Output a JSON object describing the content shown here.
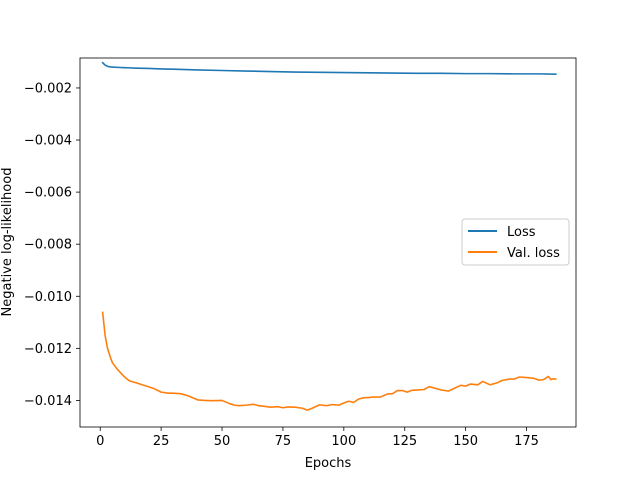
{
  "chart_data": {
    "type": "line",
    "title": "",
    "xlabel": "Epochs",
    "ylabel": "Negative log-likelihood",
    "xlim": [
      -8.3,
      195.3
    ],
    "ylim": [
      -0.01502,
      -0.00085
    ],
    "x_ticks": [
      0,
      25,
      50,
      75,
      100,
      125,
      150,
      175
    ],
    "x_tick_labels": [
      "0",
      "25",
      "50",
      "75",
      "100",
      "125",
      "150",
      "175"
    ],
    "y_ticks": [
      -0.002,
      -0.004,
      -0.006,
      -0.008,
      -0.01,
      -0.012,
      -0.014
    ],
    "y_tick_labels": [
      "−0.002",
      "−0.004",
      "−0.006",
      "−0.008",
      "−0.010",
      "−0.012",
      "−0.014"
    ],
    "grid": false,
    "legend_position": "center-right",
    "series": [
      {
        "name": "Loss",
        "color": "#1f77b4",
        "x": [
          1,
          2,
          3,
          4,
          5,
          7,
          10,
          15,
          20,
          25,
          30,
          40,
          50,
          60,
          70,
          80,
          90,
          100,
          110,
          120,
          130,
          140,
          150,
          160,
          170,
          180,
          187
        ],
        "y": [
          -0.00103,
          -0.00112,
          -0.00117,
          -0.00119,
          -0.0012,
          -0.00121,
          -0.00122,
          -0.00124,
          -0.00125,
          -0.00127,
          -0.00128,
          -0.00131,
          -0.00133,
          -0.00135,
          -0.00137,
          -0.00139,
          -0.0014,
          -0.00141,
          -0.00142,
          -0.00143,
          -0.00144,
          -0.00144,
          -0.00145,
          -0.00145,
          -0.00146,
          -0.00146,
          -0.00147
        ]
      },
      {
        "name": "Val. loss",
        "color": "#ff7f0e",
        "x": [
          1,
          2,
          3,
          4,
          5,
          6,
          7,
          8,
          9,
          10,
          12,
          15,
          18,
          20,
          22,
          25,
          28,
          30,
          33,
          36,
          40,
          43,
          46,
          50,
          53,
          55,
          57,
          60,
          63,
          65,
          67,
          70,
          73,
          75,
          77,
          80,
          83,
          85,
          87,
          90,
          93,
          95,
          98,
          100,
          102,
          104,
          106,
          108,
          110,
          112,
          115,
          118,
          120,
          122,
          124,
          126,
          128,
          130,
          133,
          135,
          137,
          140,
          143,
          145,
          148,
          150,
          152,
          155,
          157,
          160,
          163,
          165,
          168,
          170,
          172,
          175,
          178,
          180,
          182,
          184,
          185,
          186,
          187
        ],
        "y": [
          -0.01062,
          -0.0115,
          -0.012,
          -0.0123,
          -0.01255,
          -0.01268,
          -0.0128,
          -0.0129,
          -0.013,
          -0.0131,
          -0.01325,
          -0.01333,
          -0.01342,
          -0.01348,
          -0.01354,
          -0.01368,
          -0.01372,
          -0.01372,
          -0.01374,
          -0.01382,
          -0.01398,
          -0.014,
          -0.01401,
          -0.014,
          -0.01412,
          -0.01418,
          -0.0142,
          -0.01418,
          -0.01415,
          -0.0142,
          -0.01422,
          -0.01426,
          -0.01424,
          -0.01428,
          -0.01425,
          -0.01426,
          -0.0143,
          -0.01437,
          -0.0143,
          -0.01417,
          -0.0142,
          -0.01416,
          -0.01418,
          -0.0141,
          -0.01403,
          -0.01408,
          -0.01395,
          -0.0139,
          -0.01389,
          -0.01387,
          -0.01387,
          -0.01375,
          -0.01374,
          -0.01362,
          -0.01362,
          -0.01368,
          -0.01361,
          -0.0136,
          -0.01358,
          -0.01347,
          -0.01352,
          -0.0136,
          -0.01364,
          -0.01355,
          -0.01342,
          -0.01345,
          -0.01337,
          -0.0134,
          -0.01327,
          -0.0134,
          -0.01332,
          -0.01323,
          -0.01318,
          -0.01318,
          -0.0131,
          -0.01312,
          -0.01315,
          -0.01322,
          -0.0132,
          -0.01308,
          -0.0132,
          -0.01317,
          -0.01318
        ]
      }
    ]
  }
}
